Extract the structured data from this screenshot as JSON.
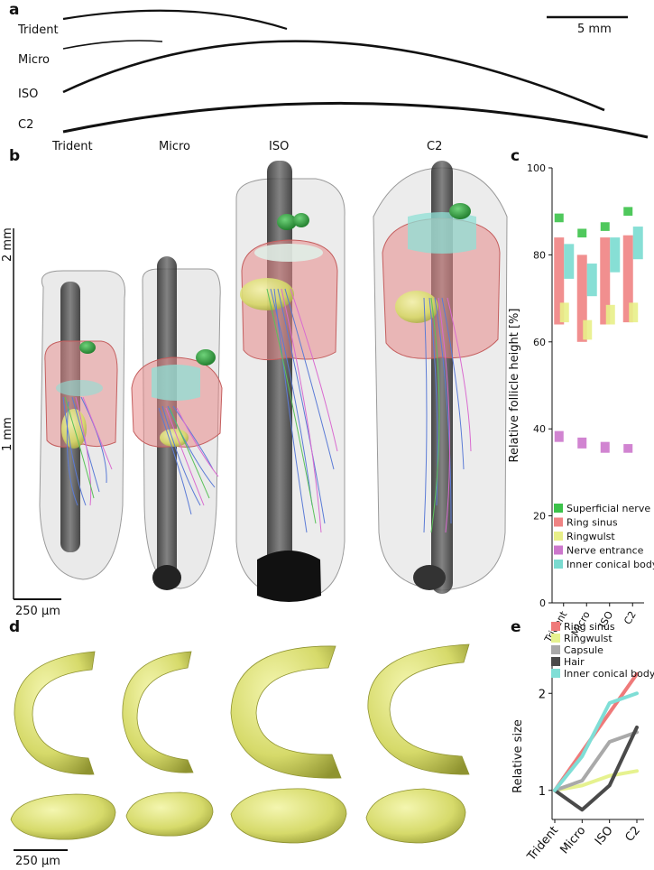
{
  "panels": {
    "a": {
      "letter": "a",
      "whiskers": [
        "Trident",
        "Micro",
        "ISO",
        "C2"
      ],
      "scale_label": "5 mm"
    },
    "b": {
      "letter": "b",
      "models": [
        "Trident",
        "Micro",
        "ISO",
        "C2"
      ],
      "axis_labels": [
        "2 mm",
        "1 mm"
      ],
      "scale_label": "250 µm"
    },
    "d": {
      "letter": "d",
      "scale_label": "250 µm"
    }
  },
  "chart_data": [
    {
      "panel": "c",
      "type": "bar",
      "ylabel": "Relative follicle height [%]",
      "ylim": [
        0,
        100
      ],
      "yticks": [
        0,
        20,
        40,
        60,
        80,
        100
      ],
      "categories": [
        "Trident",
        "Micro",
        "ISO",
        "C2"
      ],
      "series": [
        {
          "name": "Superficial nerve",
          "color": "#3cc24a",
          "ranges": [
            [
              87.5,
              89.5
            ],
            [
              84,
              86
            ],
            [
              85.5,
              87.5
            ],
            [
              89,
              91
            ]
          ]
        },
        {
          "name": "Ring sinus",
          "color": "#ef8383",
          "ranges": [
            [
              64,
              84
            ],
            [
              60,
              80
            ],
            [
              64,
              84
            ],
            [
              64.5,
              84.5
            ]
          ]
        },
        {
          "name": "Ringwulst",
          "color": "#e8ef88",
          "ranges": [
            [
              64.5,
              69
            ],
            [
              60.5,
              65
            ],
            [
              64,
              68.5
            ],
            [
              64.5,
              69
            ]
          ]
        },
        {
          "name": "Nerve entrance",
          "color": "#cc77cc",
          "ranges": [
            [
              37,
              39.5
            ],
            [
              35.5,
              38
            ],
            [
              34.5,
              37
            ],
            [
              34.5,
              36.5
            ]
          ]
        },
        {
          "name": "Inner conical body",
          "color": "#7adbd0",
          "ranges": [
            [
              74.5,
              82.5
            ],
            [
              70.5,
              78
            ],
            [
              76,
              84
            ],
            [
              79,
              86.5
            ]
          ]
        }
      ],
      "legend_position": "lower-center"
    },
    {
      "panel": "e",
      "type": "line",
      "ylabel": "Relative size",
      "ylim": [
        0.7,
        2.3
      ],
      "yticks": [
        1,
        2
      ],
      "categories": [
        "Trident",
        "Micro",
        "ISO",
        "C2"
      ],
      "series": [
        {
          "name": "Ring sinus",
          "color": "#ef7a7a",
          "values": [
            1,
            1.4,
            1.8,
            2.2
          ]
        },
        {
          "name": "Ringwulst",
          "color": "#e6f28f",
          "values": [
            1,
            1.05,
            1.15,
            1.2
          ]
        },
        {
          "name": "Capsule",
          "color": "#a9a9a9",
          "values": [
            1,
            1.1,
            1.5,
            1.6
          ]
        },
        {
          "name": "Hair",
          "color": "#4a4a4a",
          "values": [
            1,
            0.8,
            1.05,
            1.65
          ]
        },
        {
          "name": "Inner conical body",
          "color": "#7fded6",
          "values": [
            1,
            1.35,
            1.9,
            2.0
          ]
        }
      ],
      "legend_position": "top-left"
    }
  ]
}
